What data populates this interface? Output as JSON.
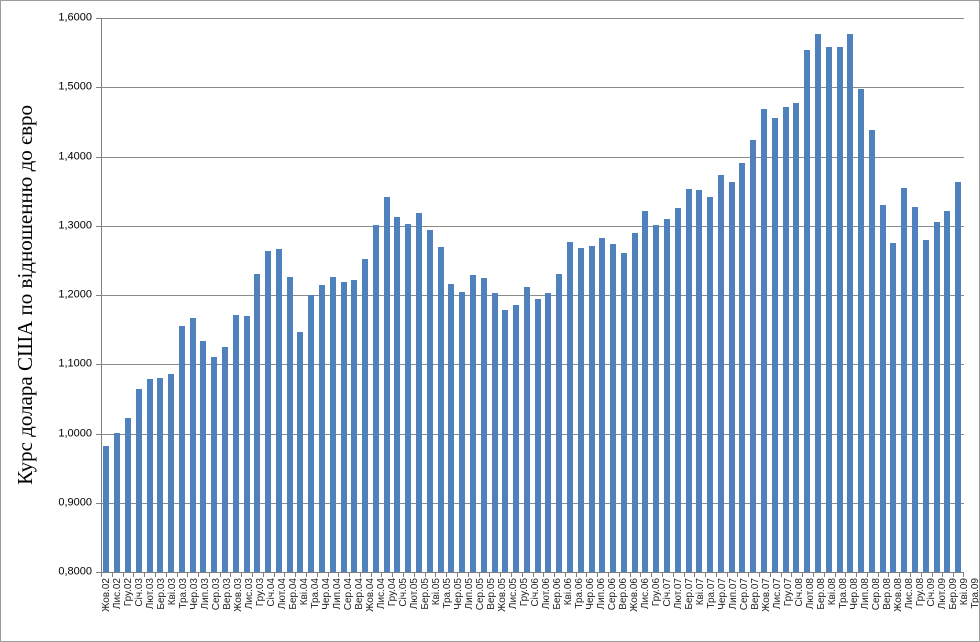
{
  "window": {
    "background": "#ffffff",
    "border_color": "#9b9b9b"
  },
  "chart_data": {
    "type": "bar",
    "title": "",
    "ylabel": "Курс долара США по відношенню до євро",
    "xlabel": "",
    "ylim": [
      0.8,
      1.6
    ],
    "grid": true,
    "legend": false,
    "bar_color": "#4f81bd",
    "gridline_color": "#8a8a8a",
    "axis_color": "#7f7f7f",
    "y_tick_labels": [
      "1,6000",
      "1,5000",
      "1,4000",
      "1,3000",
      "1,2000",
      "1,1000",
      "1,0000",
      "0,9000",
      "0,8000"
    ],
    "y_tick_values": [
      1.6,
      1.5,
      1.4,
      1.3,
      1.2,
      1.1,
      1.0,
      0.9,
      0.8
    ],
    "categories": [
      "Жов.02",
      "Лис.02",
      "Гру.02",
      "Січ.03",
      "Лют.03",
      "Бер.03",
      "Кві.03",
      "Тра.03",
      "Чер.03",
      "Лип.03",
      "Сер.03",
      "Вер.03",
      "Жов.03",
      "Лис.03",
      "Гру.03",
      "Січ.04",
      "Лют.04",
      "Бер.04",
      "Кві.04",
      "Тра.04",
      "Чер.04",
      "Лип.04",
      "Сер.04",
      "Вер.04",
      "Жов.04",
      "Лис.04",
      "Гру.04",
      "Січ.05",
      "Лют.05",
      "Бер.05",
      "Кві.05",
      "Тра.05",
      "Чер.05",
      "Лип.05",
      "Сер.05",
      "Вер.05",
      "Жов.05",
      "Лис.05",
      "Гру.05",
      "Січ.06",
      "Лют.06",
      "Бер.06",
      "Кві.06",
      "Тра.06",
      "Чер.06",
      "Лип.06",
      "Сер.06",
      "Вер.06",
      "Жов.06",
      "Лис.06",
      "Гру.06",
      "Січ.07",
      "Лют.07",
      "Бер.07",
      "Кві.07",
      "Тра.07",
      "Чер.07",
      "Лип.07",
      "Сер.07",
      "Вер.07",
      "Жов.07",
      "Лис.07",
      "Гру.07",
      "Січ.08",
      "Лют.08",
      "Бер.08",
      "Кві.08",
      "Тра.08",
      "Чер.08",
      "Лип.08",
      "Сер.08",
      "Вер.08",
      "Жов.08",
      "Лис.08",
      "Гру.08",
      "Січ.09",
      "Лют.09",
      "Бер.09",
      "Кві.09",
      "Тра.09"
    ],
    "values": [
      0.982,
      1.001,
      1.022,
      1.064,
      1.079,
      1.08,
      1.086,
      1.155,
      1.167,
      1.134,
      1.11,
      1.125,
      1.171,
      1.17,
      1.231,
      1.264,
      1.266,
      1.226,
      1.147,
      1.2,
      1.215,
      1.226,
      1.219,
      1.222,
      1.252,
      1.301,
      1.341,
      1.312,
      1.302,
      1.318,
      1.294,
      1.269,
      1.216,
      1.204,
      1.229,
      1.225,
      1.203,
      1.178,
      1.186,
      1.211,
      1.194,
      1.203,
      1.23,
      1.277,
      1.268,
      1.271,
      1.282,
      1.274,
      1.261,
      1.29,
      1.321,
      1.301,
      1.31,
      1.326,
      1.353,
      1.352,
      1.342,
      1.373,
      1.363,
      1.391,
      1.424,
      1.468,
      1.456,
      1.471,
      1.477,
      1.554,
      1.577,
      1.558,
      1.558,
      1.577,
      1.497,
      1.438,
      1.33,
      1.275,
      1.355,
      1.327,
      1.279,
      1.305,
      1.321,
      1.363
    ]
  }
}
